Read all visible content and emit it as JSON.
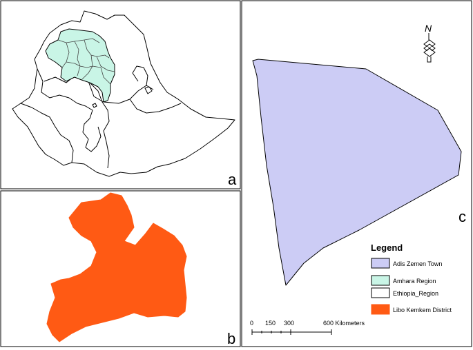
{
  "panels": {
    "a": {
      "label": "a"
    },
    "b": {
      "label": "b"
    },
    "c": {
      "label": "c"
    }
  },
  "north_arrow": {
    "letter": "N"
  },
  "legend": {
    "title": "Legend",
    "items": [
      {
        "label": "Adis Zemen Town",
        "color": "#ccccf5"
      },
      {
        "label": "Amhara Region",
        "color": "#c9f5e6"
      },
      {
        "label": "Ethiopia_Region",
        "color": "#ffffff"
      },
      {
        "label": "Libo Kemkem District",
        "color": "#ff5a14"
      }
    ]
  },
  "scale_bar": {
    "ticks": [
      "0",
      "150",
      "300",
      "600 Kilometers"
    ]
  },
  "colors": {
    "frame": "#000000",
    "town": "#ccccf5",
    "amhara": "#c9f5e6",
    "district": "#ff5a14"
  }
}
